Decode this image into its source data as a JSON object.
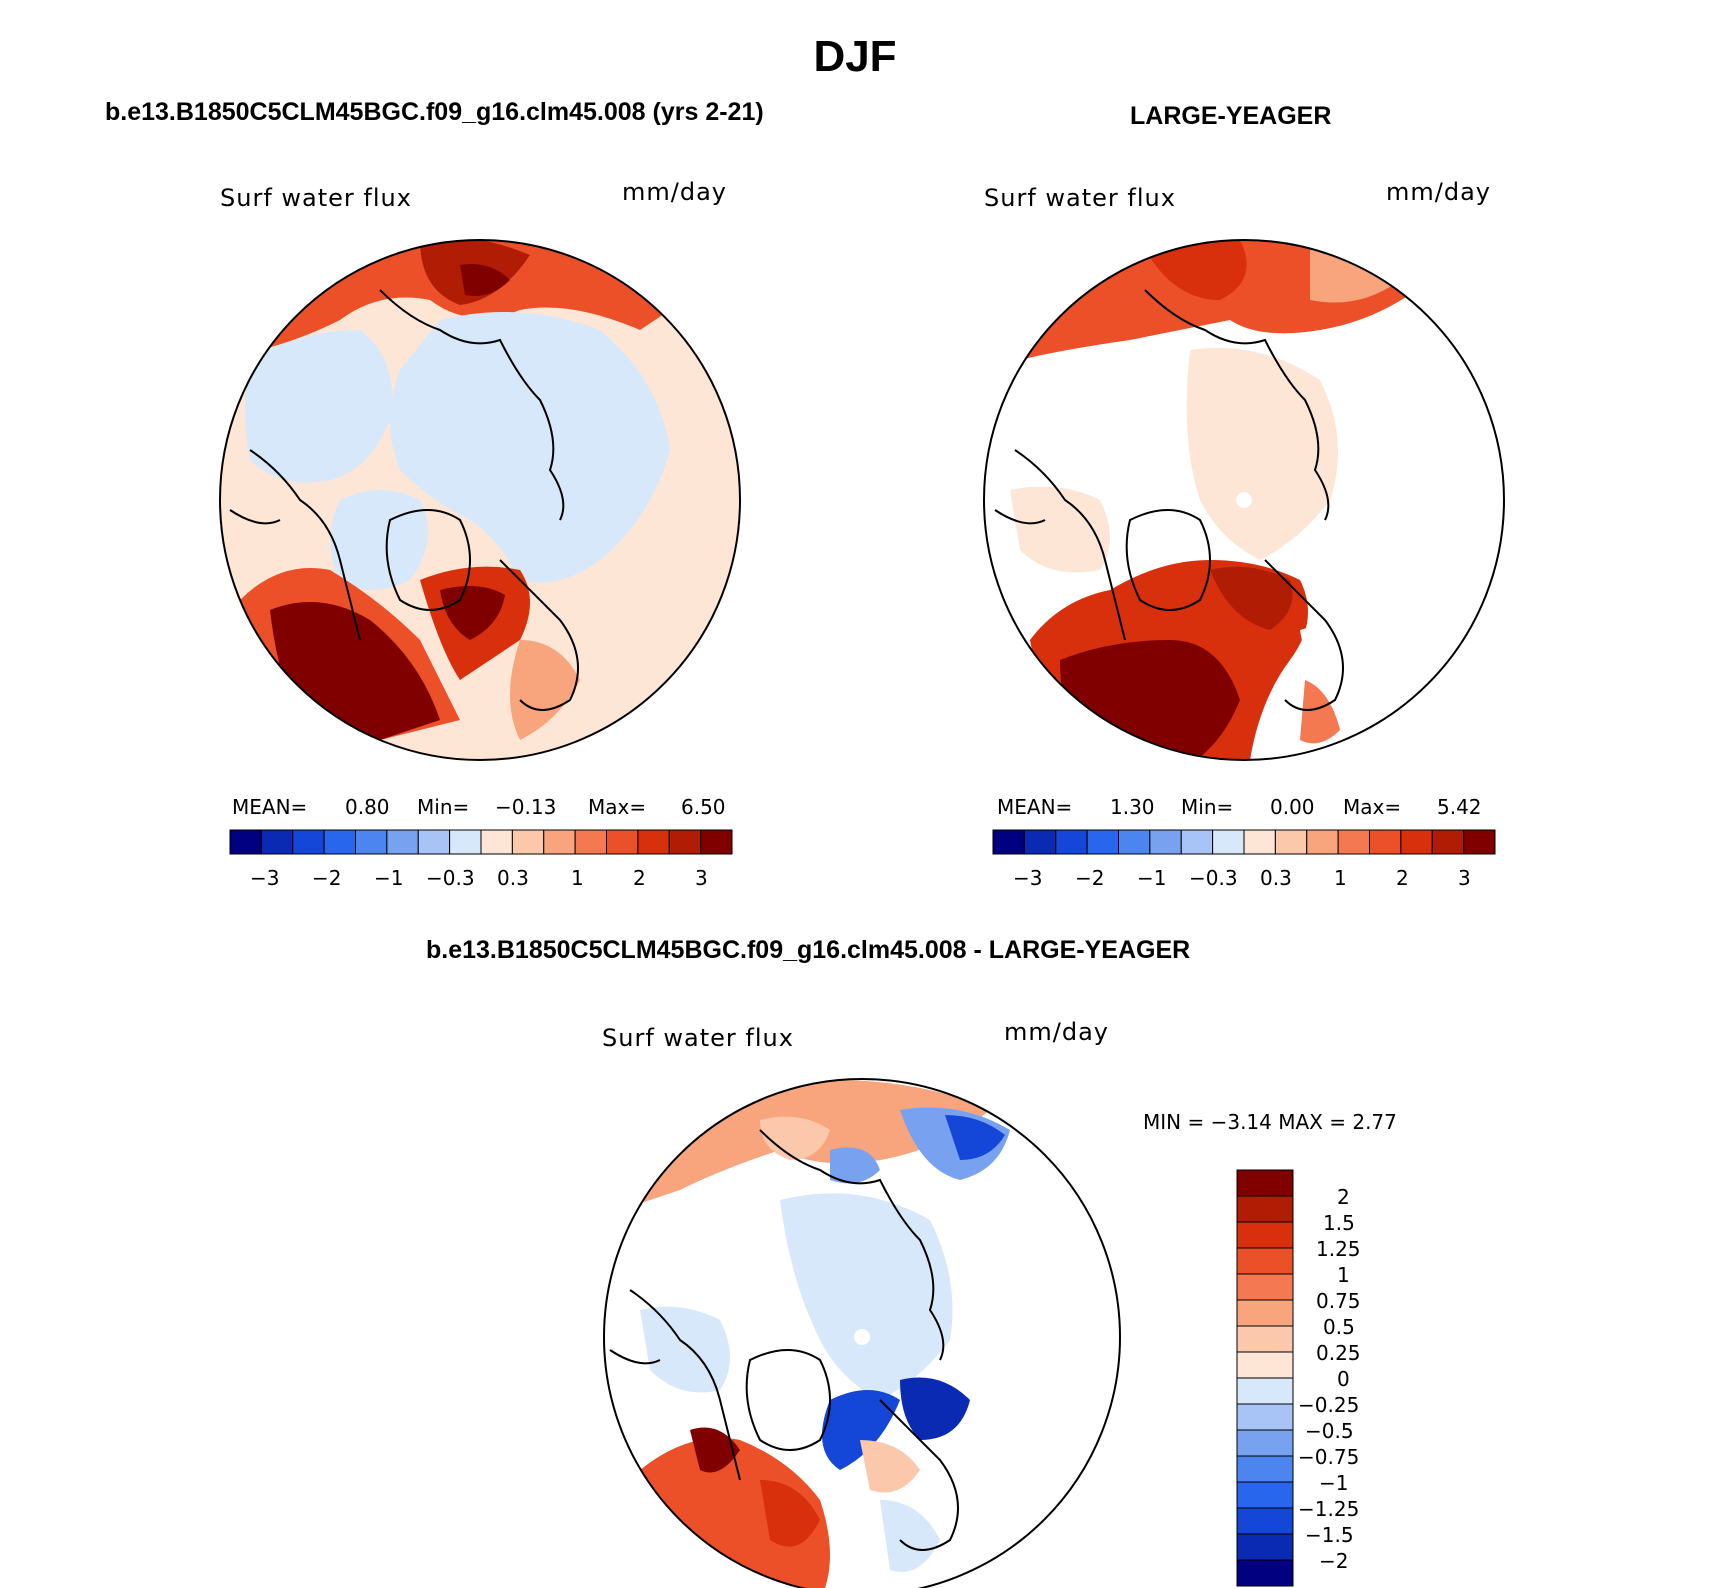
{
  "main_title": "DJF",
  "colors": {
    "scale": [
      "#000080",
      "#0a2ab4",
      "#1446d8",
      "#2866ee",
      "#4c84f0",
      "#78a2f0",
      "#a8c4f6",
      "#d6e8fa",
      "#fde6d6",
      "#fbc8ac",
      "#f8a47c",
      "#f47850",
      "#ec5028",
      "#d8300c",
      "#b01c04",
      "#800000"
    ],
    "coast": "#000000"
  },
  "panels": [
    {
      "title": "b.e13.B1850C5CLM45BGC.f09_g16.clm45.008 (yrs 2-21)",
      "variable": "Surf water flux",
      "units": "mm/day",
      "stats": {
        "mean_label": "MEAN=",
        "mean": "0.80",
        "min_label": "Min=",
        "min": "−0.13",
        "max_label": "Max=",
        "max": "6.50"
      },
      "colorbar_ticks": [
        "−3",
        "−2",
        "−1",
        "−0.3",
        "0.3",
        "1",
        "2",
        "3"
      ]
    },
    {
      "title": "LARGE-YEAGER",
      "variable": "Surf water flux",
      "units": "mm/day",
      "stats": {
        "mean_label": "MEAN=",
        "mean": "1.30",
        "min_label": "Min=",
        "min": "0.00",
        "max_label": "Max=",
        "max": "5.42"
      },
      "colorbar_ticks": [
        "−3",
        "−2",
        "−1",
        "−0.3",
        "0.3",
        "1",
        "2",
        "3"
      ]
    },
    {
      "title": "b.e13.B1850C5CLM45BGC.f09_g16.clm45.008 - LARGE-YEAGER",
      "variable": "Surf water flux",
      "units": "mm/day",
      "stats_line": "MIN =   −3.14 MAX =    2.77",
      "colorbar_labels": [
        "2",
        "1.5",
        "1.25",
        "1",
        "0.75",
        "0.5",
        "0.25",
        "0",
        "−0.25",
        "−0.5",
        "−0.75",
        "−1",
        "−1.25",
        "−1.5",
        "−2"
      ]
    }
  ]
}
